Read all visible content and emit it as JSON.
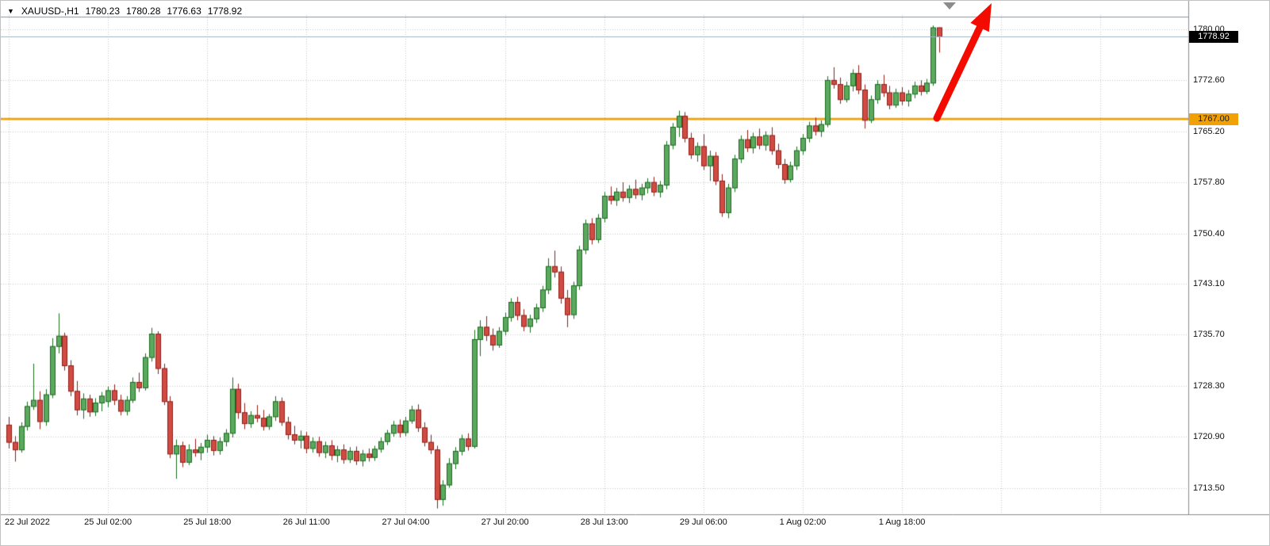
{
  "window": {
    "quote": {
      "marker": "▼",
      "symbol_period": "XAUUSD-,H1",
      "open": "1780.23",
      "high": "1780.28",
      "low": "1776.63",
      "close": "1778.92"
    }
  },
  "price_axis": {
    "labels": [
      "1780.00",
      "1772.60",
      "1765.20",
      "1757.80",
      "1750.40",
      "1743.10",
      "1735.70",
      "1728.30",
      "1720.90",
      "1713.50"
    ],
    "bid_badge": "1778.92",
    "line_badge": "1767.00"
  },
  "colors": {
    "bull_fill": "#5aa95f",
    "bull_border": "#1a6b1e",
    "bear_fill": "#d14b43",
    "bear_border": "#8e1f18",
    "grid": "#c8c8c8",
    "orange_line": "#f2a104",
    "upper_line": "#7f99b0",
    "bid_line": "#9fb2c0",
    "arrow": "#f40b00",
    "frame": "#8c8c8c"
  },
  "chart_data": {
    "type": "candlestick",
    "symbol": "XAUUSD-",
    "timeframe": "H1",
    "title": "XAUUSD-,H1",
    "current_bar": {
      "open": 1780.23,
      "high": 1780.28,
      "low": 1776.63,
      "close": 1778.92
    },
    "ylim": [
      1710.0,
      1782.5
    ],
    "price_gridline_step": 7.4,
    "lines": {
      "support_orange": 1767.0,
      "resistance_upper": 1781.8,
      "bid": 1778.92
    },
    "annotations": [
      {
        "type": "arrow",
        "direction": "up-right",
        "meaning": "bullish breakout annotation"
      }
    ],
    "time_labels": [
      {
        "index": 0,
        "label": "22 Jul 2022"
      },
      {
        "index": 16,
        "label": "25 Jul 02:00"
      },
      {
        "index": 32,
        "label": "25 Jul 18:00"
      },
      {
        "index": 48,
        "label": "26 Jul 11:00"
      },
      {
        "index": 64,
        "label": "27 Jul 04:00"
      },
      {
        "index": 80,
        "label": "27 Jul 20:00"
      },
      {
        "index": 96,
        "label": "28 Jul 13:00"
      },
      {
        "index": 112,
        "label": "29 Jul 06:00"
      },
      {
        "index": 128,
        "label": "1 Aug 02:00"
      },
      {
        "index": 144,
        "label": "1 Aug 18:00"
      }
    ],
    "extra_grid_indices": [
      160,
      176
    ],
    "candles": [
      [
        1722.6,
        1723.8,
        1719.2,
        1720.1
      ],
      [
        1720.1,
        1721.0,
        1717.3,
        1719.0
      ],
      [
        1719.0,
        1723.0,
        1718.6,
        1722.4
      ],
      [
        1722.4,
        1726.0,
        1721.8,
        1725.3
      ],
      [
        1725.3,
        1731.5,
        1724.8,
        1726.2
      ],
      [
        1726.2,
        1727.5,
        1722.0,
        1723.1
      ],
      [
        1723.1,
        1727.8,
        1722.5,
        1727.0
      ],
      [
        1727.0,
        1735.2,
        1726.5,
        1734.0
      ],
      [
        1734.0,
        1738.8,
        1733.0,
        1735.5
      ],
      [
        1735.5,
        1736.0,
        1730.5,
        1731.2
      ],
      [
        1731.2,
        1732.0,
        1726.8,
        1727.5
      ],
      [
        1727.5,
        1729.0,
        1724.0,
        1724.8
      ],
      [
        1724.8,
        1727.2,
        1723.5,
        1726.4
      ],
      [
        1726.4,
        1727.0,
        1723.8,
        1724.5
      ],
      [
        1724.5,
        1726.5,
        1723.9,
        1725.8
      ],
      [
        1725.8,
        1727.4,
        1724.6,
        1726.8
      ],
      [
        1726.0,
        1728.2,
        1725.2,
        1727.6
      ],
      [
        1727.6,
        1728.5,
        1725.5,
        1726.2
      ],
      [
        1726.2,
        1727.0,
        1724.0,
        1724.6
      ],
      [
        1724.6,
        1726.8,
        1724.0,
        1726.2
      ],
      [
        1726.2,
        1729.5,
        1725.8,
        1728.8
      ],
      [
        1728.8,
        1730.2,
        1727.4,
        1728.0
      ],
      [
        1728.0,
        1733.0,
        1727.6,
        1732.4
      ],
      [
        1732.4,
        1736.7,
        1731.8,
        1735.8
      ],
      [
        1735.8,
        1736.2,
        1730.0,
        1730.8
      ],
      [
        1730.8,
        1731.5,
        1725.5,
        1726.0
      ],
      [
        1726.0,
        1726.8,
        1717.8,
        1718.4
      ],
      [
        1718.4,
        1720.5,
        1714.8,
        1719.6
      ],
      [
        1719.6,
        1720.2,
        1716.5,
        1717.2
      ],
      [
        1717.2,
        1719.8,
        1716.8,
        1719.0
      ],
      [
        1719.0,
        1720.6,
        1718.0,
        1718.6
      ],
      [
        1718.6,
        1720.0,
        1717.5,
        1719.4
      ],
      [
        1719.4,
        1721.2,
        1718.6,
        1720.4
      ],
      [
        1720.4,
        1721.0,
        1718.2,
        1718.9
      ],
      [
        1718.9,
        1720.8,
        1718.3,
        1720.2
      ],
      [
        1720.2,
        1722.0,
        1719.5,
        1721.4
      ],
      [
        1721.4,
        1729.5,
        1720.8,
        1727.8
      ],
      [
        1727.8,
        1728.6,
        1723.5,
        1724.4
      ],
      [
        1724.4,
        1725.8,
        1722.0,
        1722.8
      ],
      [
        1722.8,
        1724.6,
        1722.2,
        1724.0
      ],
      [
        1724.0,
        1725.5,
        1723.0,
        1723.6
      ],
      [
        1723.6,
        1724.8,
        1721.8,
        1722.4
      ],
      [
        1722.4,
        1724.2,
        1721.9,
        1723.8
      ],
      [
        1723.8,
        1726.8,
        1723.2,
        1726.0
      ],
      [
        1726.0,
        1726.6,
        1722.5,
        1723.0
      ],
      [
        1723.0,
        1723.8,
        1720.5,
        1721.2
      ],
      [
        1721.2,
        1722.5,
        1719.8,
        1720.4
      ],
      [
        1720.4,
        1721.8,
        1719.2,
        1721.0
      ],
      [
        1721.0,
        1721.6,
        1718.5,
        1719.2
      ],
      [
        1719.2,
        1720.8,
        1718.6,
        1720.2
      ],
      [
        1720.2,
        1720.9,
        1718.0,
        1718.6
      ],
      [
        1718.6,
        1720.2,
        1717.8,
        1719.6
      ],
      [
        1719.6,
        1720.4,
        1717.5,
        1718.2
      ],
      [
        1718.2,
        1719.6,
        1717.2,
        1719.0
      ],
      [
        1719.0,
        1719.8,
        1717.0,
        1717.6
      ],
      [
        1717.6,
        1719.4,
        1717.1,
        1718.8
      ],
      [
        1718.8,
        1719.5,
        1716.8,
        1717.4
      ],
      [
        1717.4,
        1719.0,
        1716.6,
        1718.4
      ],
      [
        1718.4,
        1719.2,
        1717.3,
        1717.9
      ],
      [
        1717.9,
        1719.6,
        1717.4,
        1719.1
      ],
      [
        1719.1,
        1720.8,
        1718.6,
        1720.2
      ],
      [
        1720.2,
        1721.9,
        1719.7,
        1721.4
      ],
      [
        1721.4,
        1723.2,
        1720.9,
        1722.6
      ],
      [
        1722.6,
        1723.4,
        1720.8,
        1721.5
      ],
      [
        1721.5,
        1723.8,
        1721.0,
        1723.2
      ],
      [
        1723.2,
        1725.4,
        1722.8,
        1724.8
      ],
      [
        1724.8,
        1725.6,
        1721.6,
        1722.2
      ],
      [
        1722.2,
        1723.0,
        1719.5,
        1720.1
      ],
      [
        1720.1,
        1721.2,
        1718.4,
        1719.0
      ],
      [
        1719.0,
        1719.6,
        1710.5,
        1711.8
      ],
      [
        1711.8,
        1714.6,
        1710.9,
        1713.9
      ],
      [
        1713.9,
        1717.8,
        1713.5,
        1717.0
      ],
      [
        1717.0,
        1719.4,
        1716.2,
        1718.8
      ],
      [
        1718.8,
        1721.2,
        1718.2,
        1720.6
      ],
      [
        1720.6,
        1721.4,
        1718.9,
        1719.5
      ],
      [
        1719.5,
        1736.4,
        1719.2,
        1735.0
      ],
      [
        1735.0,
        1737.8,
        1732.6,
        1736.8
      ],
      [
        1736.8,
        1738.4,
        1734.8,
        1735.6
      ],
      [
        1735.6,
        1736.6,
        1733.4,
        1734.2
      ],
      [
        1734.2,
        1736.8,
        1733.8,
        1736.2
      ],
      [
        1736.2,
        1738.9,
        1735.6,
        1738.2
      ],
      [
        1738.2,
        1741.0,
        1737.6,
        1740.4
      ],
      [
        1740.4,
        1741.2,
        1737.8,
        1738.5
      ],
      [
        1738.5,
        1739.4,
        1736.2,
        1736.9
      ],
      [
        1736.9,
        1738.6,
        1736.0,
        1738.0
      ],
      [
        1738.0,
        1740.2,
        1737.4,
        1739.6
      ],
      [
        1739.6,
        1742.8,
        1739.0,
        1742.2
      ],
      [
        1742.2,
        1746.8,
        1741.6,
        1745.6
      ],
      [
        1745.6,
        1747.9,
        1744.0,
        1744.8
      ],
      [
        1744.8,
        1745.6,
        1740.2,
        1741.0
      ],
      [
        1741.0,
        1742.2,
        1736.8,
        1738.6
      ],
      [
        1738.6,
        1743.4,
        1738.0,
        1742.8
      ],
      [
        1742.8,
        1748.6,
        1742.2,
        1748.0
      ],
      [
        1748.0,
        1752.4,
        1747.4,
        1751.8
      ],
      [
        1751.8,
        1752.6,
        1748.8,
        1749.5
      ],
      [
        1749.5,
        1753.2,
        1749.0,
        1752.6
      ],
      [
        1752.6,
        1756.4,
        1752.0,
        1755.8
      ],
      [
        1755.8,
        1757.2,
        1754.6,
        1755.2
      ],
      [
        1755.2,
        1757.0,
        1754.4,
        1756.4
      ],
      [
        1756.4,
        1757.8,
        1755.0,
        1755.6
      ],
      [
        1755.6,
        1757.4,
        1754.8,
        1756.8
      ],
      [
        1756.8,
        1758.2,
        1755.4,
        1756.0
      ],
      [
        1756.0,
        1757.6,
        1755.2,
        1757.0
      ],
      [
        1757.0,
        1758.4,
        1756.2,
        1757.8
      ],
      [
        1757.8,
        1758.6,
        1755.8,
        1756.4
      ],
      [
        1756.4,
        1758.0,
        1755.6,
        1757.4
      ],
      [
        1757.4,
        1763.8,
        1756.8,
        1763.2
      ],
      [
        1763.2,
        1766.4,
        1762.6,
        1765.8
      ],
      [
        1765.8,
        1768.2,
        1764.4,
        1767.4
      ],
      [
        1767.4,
        1768.0,
        1763.6,
        1764.2
      ],
      [
        1764.2,
        1765.0,
        1761.2,
        1761.8
      ],
      [
        1761.8,
        1763.6,
        1760.8,
        1763.0
      ],
      [
        1763.0,
        1764.8,
        1759.6,
        1760.2
      ],
      [
        1760.2,
        1762.4,
        1758.0,
        1761.6
      ],
      [
        1761.6,
        1762.2,
        1757.4,
        1758.0
      ],
      [
        1758.0,
        1759.0,
        1752.8,
        1753.4
      ],
      [
        1753.4,
        1757.6,
        1752.6,
        1757.0
      ],
      [
        1757.0,
        1761.8,
        1756.4,
        1761.2
      ],
      [
        1761.2,
        1764.6,
        1760.6,
        1764.0
      ],
      [
        1764.0,
        1765.4,
        1762.2,
        1762.8
      ],
      [
        1762.8,
        1765.0,
        1762.0,
        1764.4
      ],
      [
        1764.4,
        1765.6,
        1762.6,
        1763.2
      ],
      [
        1763.2,
        1765.2,
        1762.4,
        1764.6
      ],
      [
        1764.6,
        1765.8,
        1761.8,
        1762.4
      ],
      [
        1762.4,
        1763.4,
        1759.8,
        1760.4
      ],
      [
        1760.4,
        1761.2,
        1757.6,
        1758.2
      ],
      [
        1758.2,
        1760.8,
        1757.8,
        1760.2
      ],
      [
        1760.2,
        1763.0,
        1759.6,
        1762.4
      ],
      [
        1762.4,
        1764.8,
        1761.8,
        1764.2
      ],
      [
        1764.2,
        1766.6,
        1763.6,
        1766.0
      ],
      [
        1766.0,
        1767.2,
        1764.6,
        1765.2
      ],
      [
        1765.2,
        1766.8,
        1764.4,
        1766.2
      ],
      [
        1766.2,
        1773.2,
        1765.8,
        1772.6
      ],
      [
        1772.6,
        1774.5,
        1771.4,
        1772.0
      ],
      [
        1772.0,
        1773.0,
        1769.2,
        1769.8
      ],
      [
        1769.8,
        1772.4,
        1769.4,
        1771.8
      ],
      [
        1771.8,
        1774.2,
        1771.0,
        1773.6
      ],
      [
        1773.6,
        1774.8,
        1770.6,
        1771.2
      ],
      [
        1771.2,
        1772.0,
        1765.6,
        1766.8
      ],
      [
        1766.8,
        1770.4,
        1766.4,
        1769.8
      ],
      [
        1769.8,
        1772.6,
        1769.2,
        1772.0
      ],
      [
        1772.0,
        1773.4,
        1770.2,
        1770.8
      ],
      [
        1770.8,
        1771.8,
        1768.4,
        1769.0
      ],
      [
        1769.0,
        1771.4,
        1768.6,
        1770.8
      ],
      [
        1770.8,
        1771.6,
        1769.0,
        1769.6
      ],
      [
        1769.6,
        1771.2,
        1768.8,
        1770.6
      ],
      [
        1770.6,
        1772.4,
        1770.0,
        1771.8
      ],
      [
        1771.8,
        1772.6,
        1770.4,
        1771.0
      ],
      [
        1771.0,
        1772.8,
        1770.6,
        1772.2
      ],
      [
        1772.2,
        1780.55,
        1771.8,
        1780.23
      ],
      [
        1780.23,
        1780.28,
        1776.63,
        1778.92
      ]
    ]
  }
}
